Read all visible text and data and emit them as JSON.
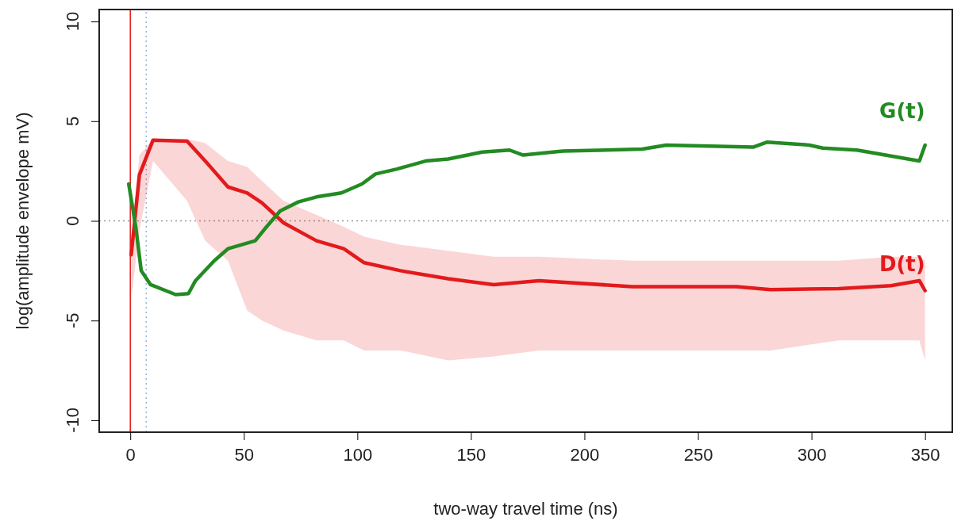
{
  "chart_data": {
    "type": "line",
    "xlabel": "two-way travel time (ns)",
    "ylabel": "log(amplitude envelope mV)",
    "xlim": [
      -13.7,
      362
    ],
    "ylim": [
      -10.6,
      10.6
    ],
    "xticks": [
      0,
      50,
      100,
      150,
      200,
      250,
      300,
      350
    ],
    "yticks": [
      -10,
      -5,
      0,
      5,
      10
    ],
    "grid": false,
    "series": [
      {
        "name": "D(t)",
        "color": "#e31a1c",
        "x": [
          0.4,
          4,
          10,
          25,
          33,
          43,
          51.5,
          58,
          67.5,
          82,
          94,
          103,
          119,
          140,
          160,
          180,
          221,
          267,
          282,
          312,
          335,
          347.5,
          350
        ],
        "values": [
          -1.7,
          2.3,
          4.05,
          4.0,
          3.0,
          1.7,
          1.4,
          0.9,
          -0.1,
          -1.0,
          -1.4,
          -2.1,
          -2.5,
          -2.9,
          -3.2,
          -3.0,
          -3.3,
          -3.3,
          -3.45,
          -3.4,
          -3.25,
          -3.0,
          -3.5
        ],
        "lower": [
          -4,
          -0.5,
          3.0,
          1.0,
          -1.0,
          -2.0,
          -4.5,
          -5.0,
          -5.5,
          -6.0,
          -6.0,
          -6.5,
          -6.5,
          -7.0,
          -6.8,
          -6.5,
          -6.5,
          -6.5,
          -6.5,
          -6.0,
          -6.0,
          -6.0,
          -7.0
        ],
        "upper": [
          -1,
          3.3,
          4.1,
          4.1,
          3.9,
          3.0,
          2.7,
          2.0,
          1.0,
          0.3,
          -0.3,
          -0.8,
          -1.2,
          -1.5,
          -1.8,
          -1.8,
          -2.0,
          -2.0,
          -2.0,
          -2.0,
          -1.8,
          -1.8,
          -2.0
        ]
      },
      {
        "name": "G(t)",
        "color": "#228b22",
        "x": [
          -0.7,
          2.4,
          4.8,
          8.9,
          20,
          25.6,
          28.7,
          37,
          43,
          55,
          60,
          66,
          74,
          82,
          93,
          102,
          108,
          117.5,
          130,
          140,
          155,
          167,
          173,
          190.5,
          225.5,
          236,
          274.5,
          280.5,
          299,
          305,
          320,
          347.5,
          350
        ],
        "values": [
          1.85,
          -0.3,
          -2.5,
          -3.2,
          -3.7,
          -3.65,
          -3.0,
          -2.0,
          -1.4,
          -1.0,
          -0.3,
          0.5,
          0.95,
          1.2,
          1.4,
          1.85,
          2.35,
          2.6,
          3.0,
          3.1,
          3.45,
          3.55,
          3.3,
          3.5,
          3.6,
          3.8,
          3.7,
          3.95,
          3.8,
          3.65,
          3.55,
          3.0,
          3.8
        ]
      }
    ],
    "ref_lines": [
      {
        "axis": "x",
        "value": 0,
        "color": "#e31a1c",
        "line_style": "solid"
      },
      {
        "axis": "x",
        "value": 7,
        "color": "#8fb8e0",
        "line_style": "dotted"
      },
      {
        "axis": "y",
        "value": 0,
        "color": "#999999",
        "line_style": "dotted"
      }
    ],
    "marker": "none",
    "line_style": "solid"
  }
}
